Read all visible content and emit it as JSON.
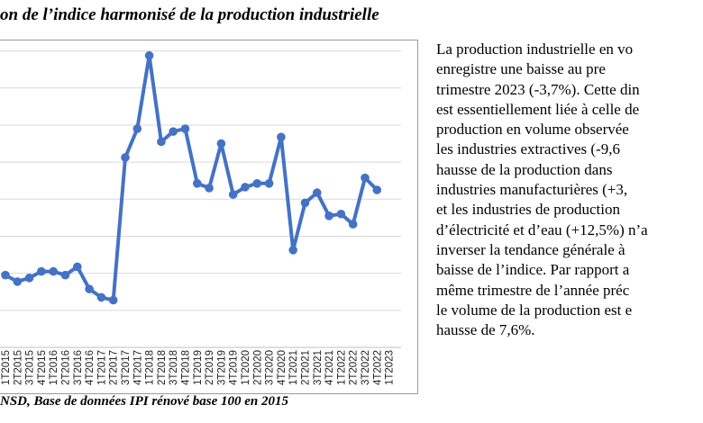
{
  "header": {
    "title": "on de l’indice harmonisé de la production industrielle"
  },
  "footer": {
    "source": "NSD, Base de données IPI rénové base 100 en 2015"
  },
  "text": {
    "lines": [
      "La production industrielle en vo",
      "enregistre  une  baisse  au  pre",
      "trimestre 2023 (-3,7%).  Cette  din",
      "est  essentiellement liée à celle de",
      "production en volume observée",
      "les        industries extractives  (-9,6",
      "hausse de la production     dans",
      "industries manufacturières     (+3,",
      "et    les industries de production",
      "d’électricité et d’eau (+12,5%) n’a",
      "inverser la  tendance  générale  à",
      "baisse  de l’indice. Par  rapport  a",
      "même  trimestre  de l’année  préc",
      "le  volume  de  la production est e",
      "hausse de 7,6%."
    ]
  },
  "chart_data": {
    "type": "line",
    "line_color": "#4472c4",
    "grid": true,
    "x": [
      "1T2015",
      "2T2015",
      "3T2015",
      "4T2015",
      "1T2016",
      "2T2016",
      "3T2016",
      "4T2016",
      "1T2017",
      "2T2017",
      "3T2017",
      "4T2017",
      "1T2018",
      "2T2018",
      "3T2018",
      "4T2018",
      "1T2019",
      "2T2019",
      "3T2019",
      "4T2019",
      "1T2020",
      "2T2020",
      "3T2020",
      "4T2020",
      "1T2021",
      "2T2021",
      "3T2021",
      "4T2021",
      "1T2022",
      "2T2022",
      "3T2022",
      "4T2022",
      "1T2023"
    ],
    "series": [
      {
        "values": [
          78,
          71,
          75,
          82,
          82,
          78,
          87,
          63,
          54,
          51,
          205,
          236,
          315,
          222,
          233,
          236,
          177,
          172,
          220,
          165,
          173,
          177,
          177,
          227,
          105,
          156,
          167,
          142,
          144,
          133,
          183,
          170,
          null
        ]
      }
    ],
    "ylim": [
      0,
      340
    ],
    "y_gridlines": [
      40,
      80,
      120,
      160,
      200,
      240,
      280,
      320
    ]
  }
}
